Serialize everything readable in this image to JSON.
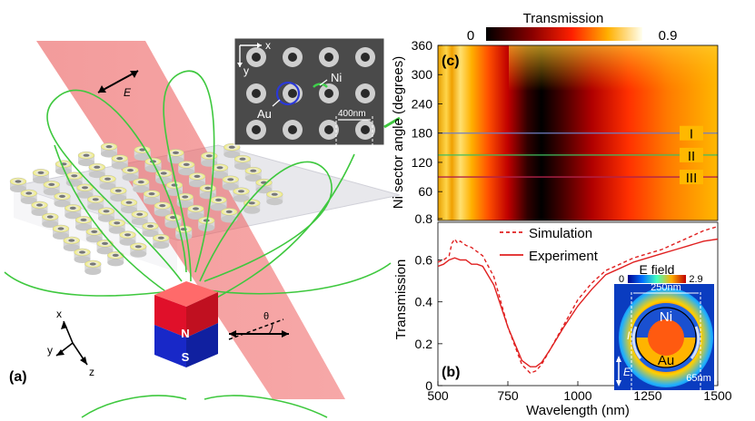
{
  "panel_a": {
    "label": "(a)",
    "field_label": "E",
    "magnet_north": "N",
    "magnet_south": "S",
    "angle_label": "θ",
    "axes": {
      "x": "x",
      "y": "y",
      "z": "z"
    },
    "inset": {
      "axis_x": "x",
      "axis_y": "y",
      "au_label": "Au",
      "ni_label": "Ni",
      "scale_label": "400nm"
    }
  },
  "colorbar": {
    "title": "Transmission",
    "min_label": "0",
    "max_label": "0.9"
  },
  "panel_c": {
    "label": "(c)",
    "ylabel": "Ni sector angle (degrees)",
    "yticks": [
      "360",
      "300",
      "240",
      "180",
      "120",
      "60",
      "0.8"
    ],
    "lines": [
      {
        "label": "I",
        "angle": 180,
        "color": "#6f7fc4"
      },
      {
        "label": "II",
        "angle": 135,
        "color": "#3fbf5f"
      },
      {
        "label": "III",
        "angle": 90,
        "color": "#b2224a"
      }
    ]
  },
  "panel_b": {
    "label": "(b)",
    "ylabel": "Transmission",
    "xlabel": "Wavelength (nm)",
    "yticks": [
      "0.6",
      "0.4",
      "0.2",
      "0"
    ],
    "xticks": [
      "500",
      "750",
      "1000",
      "1250",
      "1500"
    ],
    "legend": {
      "simulation": "Simulation",
      "experiment": "Experiment"
    },
    "inset": {
      "title": "E field",
      "cb_min": "0",
      "cb_max": "2.9",
      "dim_label": "250nm",
      "ni_label": "Ni",
      "au_label": "Au",
      "gap_label": "65nm",
      "current_label": "I",
      "field_label": "E"
    }
  },
  "chart_data": [
    {
      "type": "heatmap",
      "title": "",
      "xlabel": "Wavelength (nm)",
      "ylabel": "Ni sector angle (degrees)",
      "xlim": [
        500,
        1500
      ],
      "ylim": [
        0.8,
        360
      ],
      "colorbar": {
        "label": "Transmission",
        "range": [
          0,
          0.9
        ]
      },
      "annotations": [
        {
          "label": "I",
          "angle": 180
        },
        {
          "label": "II",
          "angle": 135
        },
        {
          "label": "III",
          "angle": 90
        }
      ]
    },
    {
      "type": "line",
      "xlabel": "Wavelength (nm)",
      "ylabel": "Transmission",
      "xlim": [
        500,
        1500
      ],
      "ylim": [
        0,
        0.75
      ],
      "series": [
        {
          "name": "Simulation",
          "style": "dashed",
          "color": "#e02020",
          "x": [
            500,
            520,
            540,
            550,
            560,
            570,
            580,
            600,
            620,
            640,
            660,
            700,
            750,
            800,
            830,
            850,
            870,
            900,
            950,
            1000,
            1050,
            1100,
            1150,
            1200,
            1250,
            1300,
            1350,
            1400,
            1450,
            1500
          ],
          "y": [
            0.59,
            0.6,
            0.62,
            0.68,
            0.7,
            0.68,
            0.69,
            0.67,
            0.66,
            0.64,
            0.62,
            0.52,
            0.28,
            0.1,
            0.06,
            0.07,
            0.1,
            0.17,
            0.29,
            0.41,
            0.49,
            0.55,
            0.58,
            0.61,
            0.63,
            0.65,
            0.68,
            0.71,
            0.74,
            0.76
          ]
        },
        {
          "name": "Experiment",
          "style": "solid",
          "color": "#e02020",
          "x": [
            500,
            520,
            540,
            560,
            580,
            600,
            620,
            640,
            660,
            700,
            750,
            800,
            830,
            850,
            870,
            900,
            950,
            1000,
            1050,
            1100,
            1150,
            1200,
            1250,
            1300,
            1350,
            1400,
            1450,
            1500
          ],
          "y": [
            0.57,
            0.58,
            0.6,
            0.61,
            0.6,
            0.6,
            0.58,
            0.58,
            0.57,
            0.48,
            0.28,
            0.12,
            0.09,
            0.09,
            0.11,
            0.17,
            0.28,
            0.38,
            0.46,
            0.53,
            0.56,
            0.59,
            0.61,
            0.63,
            0.65,
            0.67,
            0.69,
            0.7
          ]
        }
      ]
    }
  ]
}
